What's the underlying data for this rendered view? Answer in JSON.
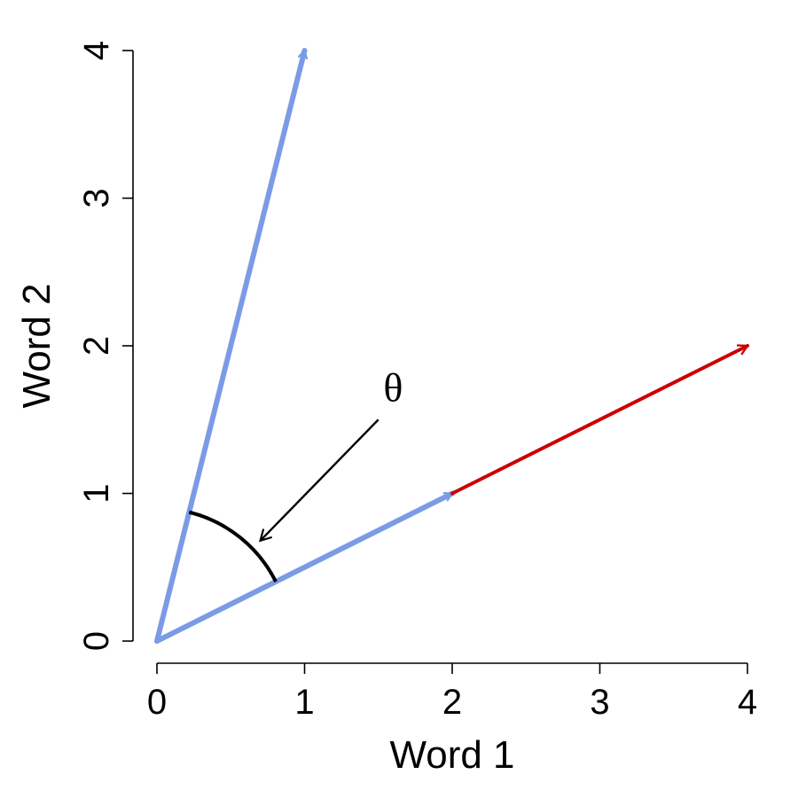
{
  "chart_data": {
    "type": "vector",
    "xlabel": "Word 1",
    "ylabel": "Word 2",
    "xlim": [
      0,
      4
    ],
    "ylim": [
      0,
      4
    ],
    "x_ticks": [
      "0",
      "1",
      "2",
      "3",
      "4"
    ],
    "y_ticks": [
      "0",
      "1",
      "2",
      "3",
      "4"
    ],
    "grid": false,
    "vectors": [
      {
        "from": [
          0,
          0
        ],
        "to": [
          1,
          4
        ],
        "color": "#7b9be6"
      },
      {
        "from": [
          0,
          0
        ],
        "to": [
          2,
          1
        ],
        "color": "#7b9be6"
      },
      {
        "from": [
          2,
          1
        ],
        "to": [
          4,
          2
        ],
        "color": "#cc0000"
      }
    ],
    "angle_annotation": {
      "label": "θ",
      "arc_radius": 0.9,
      "arrow_from": [
        1.5,
        1.5
      ],
      "arrow_to": [
        0.7,
        0.68
      ],
      "label_position": [
        1.6,
        1.72
      ]
    }
  }
}
